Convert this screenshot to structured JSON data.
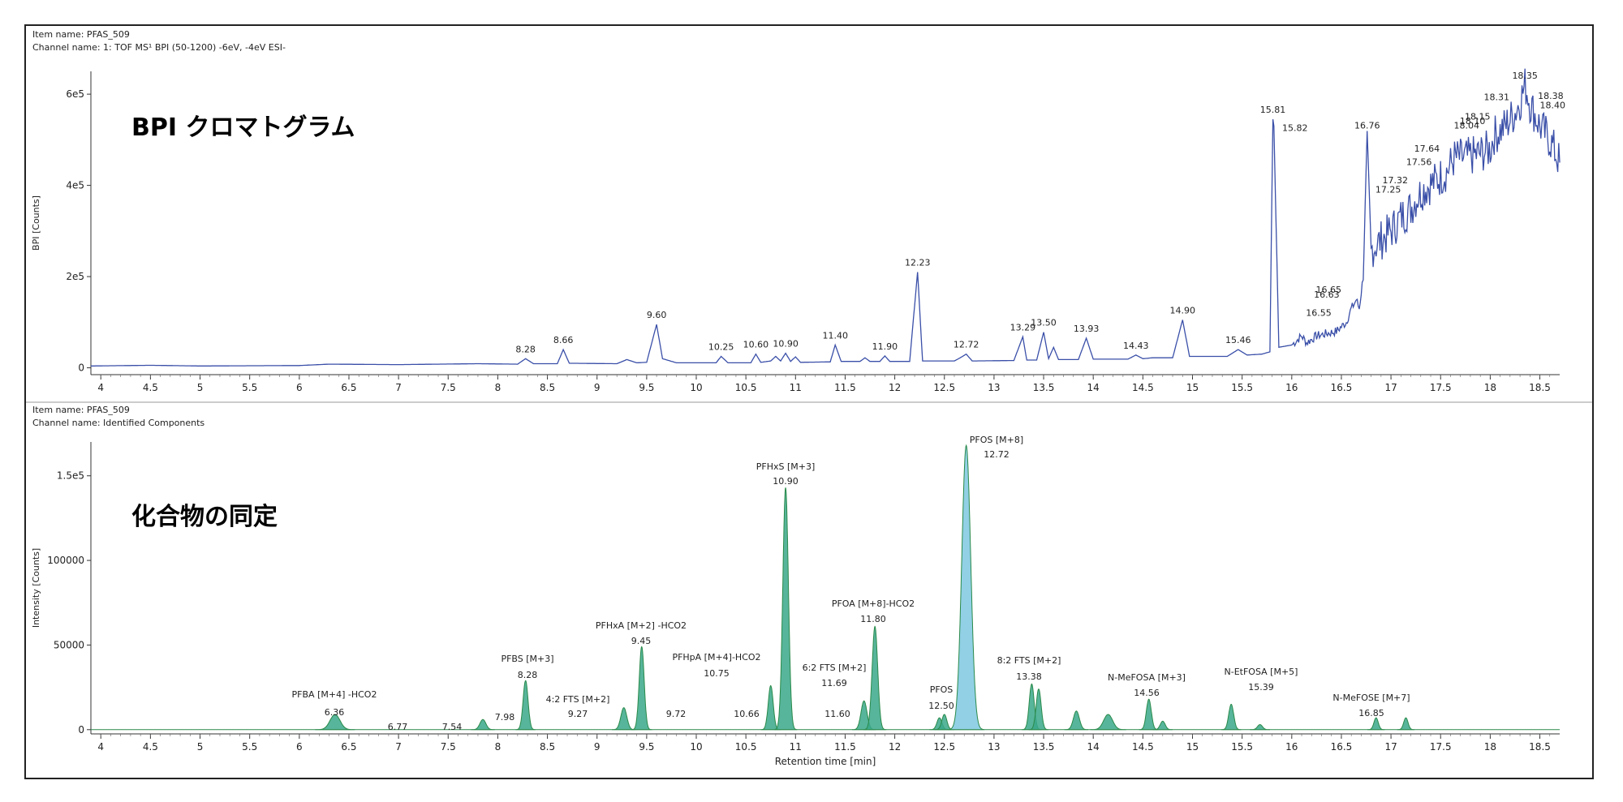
{
  "top": {
    "item_name": "Item name: PFAS_509",
    "channel_name": "Channel name: 1: TOF MS¹ BPI (50-1200) -6eV, -4eV ESI-",
    "big_label": "BPI クロマトグラム"
  },
  "bottom": {
    "item_name": "Item name: PFAS_509",
    "channel_name": "Channel name: Identified Components",
    "big_label": "化合物の同定"
  },
  "colors": {
    "bpi_line": "#3a4fa8",
    "component_line": "#2a8a4a",
    "component_fill": "#3aa88a",
    "pfos_m8_fill": "#7ec8e0",
    "frame": "#222222"
  },
  "chart_data": [
    {
      "type": "line",
      "xlabel": "",
      "ylabel": "BPI [Counts]",
      "xlim": [
        3.9,
        18.7
      ],
      "ylim": [
        -15000,
        650000
      ],
      "x_ticks": [
        "4",
        "4.5",
        "5",
        "5.5",
        "6",
        "6.5",
        "7",
        "7.5",
        "8",
        "8.5",
        "9",
        "9.5",
        "10",
        "10.5",
        "11",
        "11.5",
        "12",
        "12.5",
        "13",
        "13.5",
        "14",
        "14.5",
        "15",
        "15.5",
        "16",
        "16.5",
        "17",
        "17.5",
        "18",
        "18.5"
      ],
      "y_ticks": [
        {
          "value": 0,
          "label": "0"
        },
        {
          "value": 200000,
          "label": "2e5"
        },
        {
          "value": 400000,
          "label": "4e5"
        },
        {
          "value": 600000,
          "label": "6e5"
        }
      ],
      "series": [
        {
          "points": [
            [
              3.9,
              4000
            ],
            [
              4.5,
              5500
            ],
            [
              5.0,
              4000
            ],
            [
              6.0,
              5000
            ],
            [
              6.3,
              8000
            ],
            [
              7.0,
              7000
            ],
            [
              7.8,
              9000
            ],
            [
              8.2,
              8000
            ],
            [
              8.28,
              20000
            ],
            [
              8.36,
              9000
            ],
            [
              8.6,
              9000
            ],
            [
              8.66,
              40000
            ],
            [
              8.72,
              10000
            ],
            [
              9.2,
              9000
            ],
            [
              9.3,
              18000
            ],
            [
              9.4,
              11000
            ],
            [
              9.5,
              12000
            ],
            [
              9.6,
              95000
            ],
            [
              9.66,
              20000
            ],
            [
              9.8,
              11000
            ],
            [
              10.2,
              11000
            ],
            [
              10.25,
              25000
            ],
            [
              10.32,
              11000
            ],
            [
              10.55,
              11000
            ],
            [
              10.6,
              30000
            ],
            [
              10.65,
              12000
            ],
            [
              10.75,
              15000
            ],
            [
              10.8,
              25000
            ],
            [
              10.85,
              15000
            ],
            [
              10.9,
              32000
            ],
            [
              10.95,
              14000
            ],
            [
              11.0,
              24000
            ],
            [
              11.05,
              12000
            ],
            [
              11.35,
              13000
            ],
            [
              11.4,
              50000
            ],
            [
              11.46,
              14000
            ],
            [
              11.65,
              14000
            ],
            [
              11.7,
              22000
            ],
            [
              11.75,
              14000
            ],
            [
              11.85,
              14000
            ],
            [
              11.9,
              26000
            ],
            [
              11.95,
              14000
            ],
            [
              12.15,
              14000
            ],
            [
              12.23,
              210000
            ],
            [
              12.28,
              15000
            ],
            [
              12.6,
              15000
            ],
            [
              12.66,
              22000
            ],
            [
              12.72,
              30000
            ],
            [
              12.78,
              15000
            ],
            [
              13.2,
              16000
            ],
            [
              13.29,
              68000
            ],
            [
              13.33,
              17000
            ],
            [
              13.43,
              17000
            ],
            [
              13.5,
              78000
            ],
            [
              13.55,
              20000
            ],
            [
              13.6,
              45000
            ],
            [
              13.65,
              18000
            ],
            [
              13.85,
              18000
            ],
            [
              13.93,
              65000
            ],
            [
              14.0,
              19000
            ],
            [
              14.35,
              19000
            ],
            [
              14.43,
              28000
            ],
            [
              14.5,
              20000
            ],
            [
              14.6,
              22000
            ],
            [
              14.8,
              22000
            ],
            [
              14.9,
              105000
            ],
            [
              14.97,
              25000
            ],
            [
              15.35,
              25000
            ],
            [
              15.46,
              40000
            ],
            [
              15.55,
              28000
            ],
            [
              15.7,
              30000
            ],
            [
              15.78,
              35000
            ],
            [
              15.81,
              545000
            ],
            [
              15.82,
              530000
            ],
            [
              15.87,
              45000
            ],
            [
              16.0,
              50000
            ],
            [
              16.1,
              70000
            ],
            [
              16.15,
              55000
            ],
            [
              16.25,
              70000
            ],
            [
              16.35,
              75000
            ],
            [
              16.45,
              80000
            ],
            [
              16.55,
              100000
            ],
            [
              16.6,
              130000
            ],
            [
              16.63,
              140000
            ],
            [
              16.65,
              150000
            ],
            [
              16.68,
              130000
            ],
            [
              16.72,
              200000
            ],
            [
              16.76,
              510000
            ],
            [
              16.8,
              260000
            ],
            [
              16.9,
              280000
            ],
            [
              17.0,
              300000
            ],
            [
              17.1,
              330000
            ],
            [
              17.2,
              350000
            ],
            [
              17.25,
              370000
            ],
            [
              17.32,
              390000
            ],
            [
              17.45,
              410000
            ],
            [
              17.56,
              430000
            ],
            [
              17.64,
              460000
            ],
            [
              17.75,
              460000
            ],
            [
              17.9,
              470000
            ],
            [
              18.0,
              480000
            ],
            [
              18.04,
              510000
            ],
            [
              18.1,
              520000
            ],
            [
              18.15,
              530000
            ],
            [
              18.25,
              560000
            ],
            [
              18.31,
              590000
            ],
            [
              18.35,
              620000
            ],
            [
              18.38,
              600000
            ],
            [
              18.4,
              580000
            ],
            [
              18.5,
              530000
            ],
            [
              18.6,
              500000
            ],
            [
              18.7,
              450000
            ]
          ]
        }
      ],
      "annotations": [
        "8.28",
        "8.66",
        "9.60",
        "10.25",
        "10.60",
        "10.90",
        "11.40",
        "11.90",
        "12.23",
        "12.72",
        "13.29",
        "13.50",
        "13.93",
        "14.43",
        "14.90",
        "15.46",
        "15.81",
        "15.82",
        "16.55",
        "16.63",
        "16.65",
        "16.76",
        "17.25",
        "17.32",
        "17.56",
        "17.64",
        "18.04",
        "18.10",
        "18.15",
        "18.31",
        "18.35",
        "18.38",
        "18.40"
      ]
    },
    {
      "type": "area",
      "xlabel": "Retention time [min]",
      "ylabel": "Intensity [Counts]",
      "xlim": [
        3.9,
        18.7
      ],
      "ylim": [
        -2500,
        170000
      ],
      "x_ticks": [
        "4",
        "4.5",
        "5",
        "5.5",
        "6",
        "6.5",
        "7",
        "7.5",
        "8",
        "8.5",
        "9",
        "9.5",
        "10",
        "10.5",
        "11",
        "11.5",
        "12",
        "12.5",
        "13",
        "13.5",
        "14",
        "14.5",
        "15",
        "15.5",
        "16",
        "16.5",
        "17",
        "17.5",
        "18",
        "18.5"
      ],
      "y_ticks": [
        {
          "value": 0,
          "label": "0"
        },
        {
          "value": 50000,
          "label": "50000"
        },
        {
          "value": 100000,
          "label": "100000"
        },
        {
          "value": 150000,
          "label": "1.5e5"
        }
      ],
      "peaks": [
        {
          "x": 6.36,
          "h": 9000,
          "w": 0.05
        },
        {
          "x": 7.85,
          "h": 6000,
          "w": 0.03
        },
        {
          "x": 8.28,
          "h": 29000,
          "w": 0.025
        },
        {
          "x": 9.27,
          "h": 13000,
          "w": 0.03
        },
        {
          "x": 9.45,
          "h": 49000,
          "w": 0.025
        },
        {
          "x": 10.75,
          "h": 26000,
          "w": 0.025
        },
        {
          "x": 10.9,
          "h": 143000,
          "w": 0.028
        },
        {
          "x": 11.69,
          "h": 17000,
          "w": 0.03
        },
        {
          "x": 11.8,
          "h": 61000,
          "w": 0.028
        },
        {
          "x": 12.45,
          "h": 7000,
          "w": 0.025
        },
        {
          "x": 12.5,
          "h": 9000,
          "w": 0.025
        },
        {
          "x": 13.38,
          "h": 27000,
          "w": 0.025
        },
        {
          "x": 13.45,
          "h": 24000,
          "w": 0.025
        },
        {
          "x": 13.83,
          "h": 11000,
          "w": 0.03
        },
        {
          "x": 14.15,
          "h": 9000,
          "w": 0.045
        },
        {
          "x": 14.56,
          "h": 18000,
          "w": 0.025
        },
        {
          "x": 14.7,
          "h": 5000,
          "w": 0.025
        },
        {
          "x": 15.39,
          "h": 15000,
          "w": 0.025
        },
        {
          "x": 15.68,
          "h": 3000,
          "w": 0.025
        },
        {
          "x": 16.85,
          "h": 7000,
          "w": 0.022
        },
        {
          "x": 17.15,
          "h": 7000,
          "w": 0.022
        }
      ],
      "pfos_m8_peak": {
        "x": 12.72,
        "h": 168000,
        "w": 0.045
      },
      "annotations": [
        {
          "name": "PFBA [M+4] -HCO2",
          "rt": "6.36"
        },
        {
          "name": "",
          "rt": "6.77"
        },
        {
          "name": "",
          "rt": "7.54"
        },
        {
          "name": "",
          "rt": "7.98"
        },
        {
          "name": "PFBS [M+3]",
          "rt": "8.28"
        },
        {
          "name": "4:2 FTS [M+2]",
          "rt": "9.27"
        },
        {
          "name": "PFHxA [M+2] -HCO2",
          "rt": "9.45"
        },
        {
          "name": "",
          "rt": "9.72"
        },
        {
          "name": "PFHpA [M+4]-HCO2",
          "rt": "10.75"
        },
        {
          "name": "",
          "rt": "10.66"
        },
        {
          "name": "PFHxS [M+3]",
          "rt": "10.90"
        },
        {
          "name": "6:2 FTS [M+2]",
          "rt": "11.69"
        },
        {
          "name": "",
          "rt": "11.60"
        },
        {
          "name": "PFOA [M+8]-HCO2",
          "rt": "11.80"
        },
        {
          "name": "PFOS",
          "rt": "12.50"
        },
        {
          "name": "PFOS [M+8]",
          "rt": "12.72"
        },
        {
          "name": "8:2 FTS [M+2]",
          "rt": "13.38"
        },
        {
          "name": "N-MeFOSA [M+3]",
          "rt": "14.56"
        },
        {
          "name": "N-EtFOSA [M+5]",
          "rt": "15.39"
        },
        {
          "name": "N-MeFOSE [M+7]",
          "rt": "16.85"
        }
      ]
    }
  ]
}
